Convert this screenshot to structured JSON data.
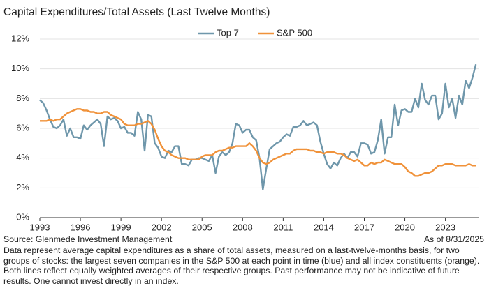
{
  "chart_data": {
    "type": "line",
    "title": "Capital Expenditures/Total Assets (Last Twelve Months)",
    "source": "Source: Glenmede Investment Management",
    "as_of": "As of 8/31/2025",
    "note": "Data represent average capital expenditures as a share of total assets, measured on a last-twelve-months basis, for two groups of stocks: the largest seven companies in the S&P 500 at each point in time (blue) and all index constituents (orange). Both lines reflect equally weighted averages of their respective groups. Past performance may not be indicative of future results. One cannot invest directly in an index.",
    "x": [
      1993,
      1993.25,
      1993.5,
      1993.75,
      1994,
      1994.25,
      1994.5,
      1994.75,
      1995,
      1995.25,
      1995.5,
      1995.75,
      1996,
      1996.25,
      1996.5,
      1996.75,
      1997,
      1997.25,
      1997.5,
      1997.75,
      1998,
      1998.25,
      1998.5,
      1998.75,
      1999,
      1999.25,
      1999.5,
      1999.75,
      2000,
      2000.25,
      2000.5,
      2000.75,
      2001,
      2001.25,
      2001.5,
      2001.75,
      2002,
      2002.25,
      2002.5,
      2002.75,
      2003,
      2003.25,
      2003.5,
      2003.75,
      2004,
      2004.25,
      2004.5,
      2004.75,
      2005,
      2005.25,
      2005.5,
      2005.75,
      2006,
      2006.25,
      2006.5,
      2006.75,
      2007,
      2007.25,
      2007.5,
      2007.75,
      2008,
      2008.25,
      2008.5,
      2008.75,
      2009,
      2009.25,
      2009.5,
      2009.75,
      2010,
      2010.25,
      2010.5,
      2010.75,
      2011,
      2011.25,
      2011.5,
      2011.75,
      2012,
      2012.25,
      2012.5,
      2012.75,
      2013,
      2013.25,
      2013.5,
      2013.75,
      2014,
      2014.25,
      2014.5,
      2014.75,
      2015,
      2015.25,
      2015.5,
      2015.75,
      2016,
      2016.25,
      2016.5,
      2016.75,
      2017,
      2017.25,
      2017.5,
      2017.75,
      2018,
      2018.25,
      2018.5,
      2018.75,
      2019,
      2019.25,
      2019.5,
      2019.75,
      2020,
      2020.25,
      2020.5,
      2020.75,
      2021,
      2021.25,
      2021.5,
      2021.75,
      2022,
      2022.25,
      2022.5,
      2022.75,
      2023,
      2023.25,
      2023.5,
      2023.75,
      2024,
      2024.25,
      2024.5,
      2024.75,
      2025,
      2025.25
    ],
    "series": [
      {
        "name": "Top 7",
        "color": "#6f97ab",
        "values": [
          7.9,
          7.7,
          7.2,
          6.6,
          6.1,
          6.0,
          6.2,
          6.6,
          5.5,
          6.0,
          5.4,
          5.4,
          5.3,
          6.2,
          5.9,
          6.2,
          6.4,
          6.6,
          6.3,
          4.8,
          6.8,
          6.6,
          6.7,
          6.5,
          6.0,
          6.1,
          5.7,
          5.7,
          5.5,
          7.1,
          6.6,
          4.5,
          6.9,
          6.8,
          5.0,
          4.7,
          4.1,
          4.0,
          4.5,
          4.4,
          4.8,
          4.8,
          3.6,
          3.6,
          3.5,
          3.9,
          3.9,
          4.0,
          4.0,
          3.9,
          3.8,
          4.2,
          3.0,
          4.1,
          4.4,
          4.2,
          4.4,
          5.0,
          6.3,
          6.2,
          5.7,
          5.9,
          5.9,
          5.4,
          5.2,
          4.0,
          1.9,
          3.3,
          4.6,
          4.8,
          5.0,
          5.1,
          5.4,
          5.6,
          5.5,
          6.1,
          6.1,
          6.2,
          6.5,
          6.2,
          6.3,
          6.4,
          6.2,
          5.1,
          4.3,
          3.6,
          3.3,
          3.7,
          3.5,
          4.0,
          4.3,
          4.0,
          4.4,
          4.4,
          4.1,
          5.0,
          5.0,
          4.9,
          4.3,
          4.4,
          5.2,
          6.6,
          4.3,
          5.4,
          5.4,
          7.6,
          6.2,
          7.2,
          7.3,
          7.1,
          7.1,
          8.0,
          7.4,
          9.0,
          7.9,
          7.6,
          8.2,
          8.2,
          6.6,
          7.0,
          9.0,
          7.4,
          8.0,
          6.7,
          8.2,
          7.6,
          9.2,
          8.7,
          9.4,
          10.3
        ]
      },
      {
        "name": "S&P 500",
        "color": "#f0923a",
        "values": [
          6.5,
          6.5,
          6.5,
          6.6,
          6.5,
          6.6,
          6.6,
          6.8,
          7.0,
          7.1,
          7.2,
          7.3,
          7.3,
          7.2,
          7.2,
          7.1,
          7.1,
          7.0,
          7.0,
          7.1,
          7.1,
          6.9,
          6.8,
          6.7,
          6.6,
          6.3,
          6.2,
          6.2,
          6.2,
          6.3,
          6.3,
          6.4,
          6.5,
          6.3,
          5.9,
          5.3,
          4.8,
          4.5,
          4.4,
          4.2,
          4.1,
          4.0,
          4.0,
          4.0,
          3.9,
          3.9,
          3.9,
          3.9,
          4.1,
          4.2,
          4.2,
          4.2,
          4.4,
          4.5,
          4.5,
          4.6,
          4.7,
          4.7,
          4.8,
          4.8,
          4.8,
          4.8,
          5.0,
          4.8,
          4.5,
          4.0,
          3.7,
          3.6,
          3.7,
          3.9,
          4.0,
          4.1,
          4.2,
          4.3,
          4.3,
          4.5,
          4.6,
          4.6,
          4.6,
          4.6,
          4.5,
          4.5,
          4.4,
          4.4,
          4.3,
          4.4,
          4.4,
          4.4,
          4.3,
          4.3,
          4.2,
          4.0,
          3.9,
          3.8,
          3.9,
          3.7,
          3.5,
          3.5,
          3.7,
          3.6,
          3.7,
          3.7,
          3.9,
          3.8,
          3.7,
          3.6,
          3.6,
          3.6,
          3.4,
          3.1,
          3.0,
          2.8,
          2.8,
          2.9,
          3.0,
          3.0,
          3.1,
          3.3,
          3.5,
          3.5,
          3.6,
          3.6,
          3.6,
          3.5,
          3.5,
          3.5,
          3.5,
          3.6,
          3.5,
          3.5
        ]
      }
    ],
    "xlim": [
      1993,
      2025.5
    ],
    "xticks": [
      1993,
      1996,
      1999,
      2002,
      2005,
      2008,
      2011,
      2014,
      2017,
      2020,
      2023
    ],
    "ylim": [
      0,
      12
    ],
    "yticks": [
      {
        "value": 0,
        "label": "0%"
      },
      {
        "value": 2,
        "label": "2%"
      },
      {
        "value": 4,
        "label": "4%"
      },
      {
        "value": 6,
        "label": "6%"
      },
      {
        "value": 8,
        "label": "8%"
      },
      {
        "value": 10,
        "label": "10%"
      },
      {
        "value": 12,
        "label": "12%"
      }
    ],
    "grid": true,
    "legend": "top"
  }
}
